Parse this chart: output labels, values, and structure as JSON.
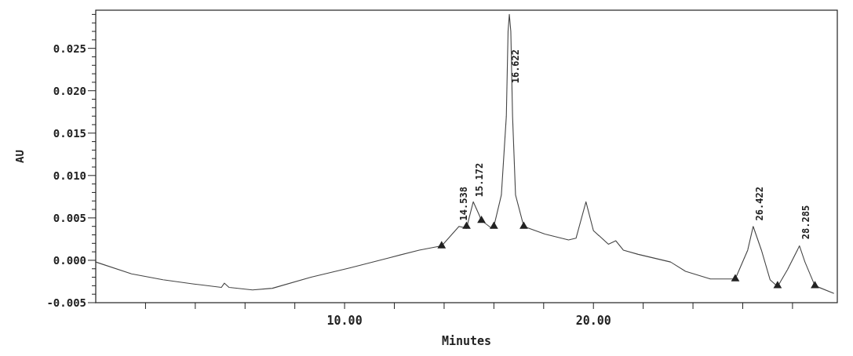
{
  "chart_data": {
    "type": "line",
    "xlabel": "Minutes",
    "ylabel": "AU",
    "xlim": [
      0,
      29.8
    ],
    "ylim": [
      -0.005,
      0.0295
    ],
    "xticks": [
      {
        "value": 2,
        "label": null
      },
      {
        "value": 4,
        "label": null
      },
      {
        "value": 6,
        "label": null
      },
      {
        "value": 8,
        "label": null
      },
      {
        "value": 10,
        "label": "10.00"
      },
      {
        "value": 12,
        "label": null
      },
      {
        "value": 14,
        "label": null
      },
      {
        "value": 16,
        "label": null
      },
      {
        "value": 18,
        "label": null
      },
      {
        "value": 20,
        "label": "20.00"
      },
      {
        "value": 22,
        "label": null
      },
      {
        "value": 24,
        "label": null
      },
      {
        "value": 26,
        "label": null
      },
      {
        "value": 28,
        "label": null
      }
    ],
    "yticks": [
      {
        "value": -0.005,
        "label": "-0.005"
      },
      {
        "value": -0.004,
        "label": null
      },
      {
        "value": -0.003,
        "label": null
      },
      {
        "value": -0.002,
        "label": null
      },
      {
        "value": -0.001,
        "label": null
      },
      {
        "value": 0,
        "label": "0.000"
      },
      {
        "value": 0.001,
        "label": null
      },
      {
        "value": 0.002,
        "label": null
      },
      {
        "value": 0.003,
        "label": null
      },
      {
        "value": 0.004,
        "label": null
      },
      {
        "value": 0.005,
        "label": "0.005"
      },
      {
        "value": 0.006,
        "label": null
      },
      {
        "value": 0.007,
        "label": null
      },
      {
        "value": 0.008,
        "label": null
      },
      {
        "value": 0.009,
        "label": null
      },
      {
        "value": 0.01,
        "label": "0.010"
      },
      {
        "value": 0.011,
        "label": null
      },
      {
        "value": 0.012,
        "label": null
      },
      {
        "value": 0.013,
        "label": null
      },
      {
        "value": 0.014,
        "label": null
      },
      {
        "value": 0.015,
        "label": "0.015"
      },
      {
        "value": 0.016,
        "label": null
      },
      {
        "value": 0.017,
        "label": null
      },
      {
        "value": 0.018,
        "label": null
      },
      {
        "value": 0.019,
        "label": null
      },
      {
        "value": 0.02,
        "label": "0.020"
      },
      {
        "value": 0.021,
        "label": null
      },
      {
        "value": 0.022,
        "label": null
      },
      {
        "value": 0.023,
        "label": null
      },
      {
        "value": 0.024,
        "label": null
      },
      {
        "value": 0.025,
        "label": "0.025"
      },
      {
        "value": 0.026,
        "label": null
      },
      {
        "value": 0.027,
        "label": null
      },
      {
        "value": 0.028,
        "label": null
      },
      {
        "value": 0.029,
        "label": null
      }
    ],
    "grid": false,
    "line_style": "solid",
    "series": [
      {
        "color": "#444444",
        "marker": "none",
        "x": [
          0,
          1.44,
          2.7,
          3.95,
          5.05,
          5.17,
          5.36,
          6.3,
          7.1,
          8.65,
          10.2,
          11.8,
          13.0,
          13.9,
          14.6,
          14.9,
          15.17,
          15.4,
          15.5,
          15.9,
          16.0,
          16.3,
          16.5,
          16.57,
          16.62,
          16.68,
          16.75,
          16.87,
          17.2,
          18.05,
          19.0,
          19.3,
          19.7,
          20.0,
          20.6,
          20.9,
          21.2,
          21.8,
          23.1,
          23.7,
          24.7,
          25.7,
          26.2,
          26.42,
          26.75,
          27.1,
          27.4,
          27.8,
          28.28,
          28.5,
          28.9,
          29.65
        ],
        "values": [
          -0.0002,
          -0.0016,
          -0.0023,
          -0.0028,
          -0.0032,
          -0.0027,
          -0.0032,
          -0.0035,
          -0.0033,
          -0.002,
          -0.0009,
          0.0003,
          0.0012,
          0.0017,
          0.004,
          0.0038,
          0.0069,
          0.0054,
          0.0047,
          0.0038,
          0.004,
          0.0077,
          0.017,
          0.027,
          0.029,
          0.027,
          0.017,
          0.0077,
          0.004,
          0.0031,
          0.0024,
          0.0026,
          0.0069,
          0.0035,
          0.0019,
          0.0023,
          0.0012,
          0.0007,
          -0.0002,
          -0.0013,
          -0.0022,
          -0.0022,
          0.0012,
          0.004,
          0.0012,
          -0.0023,
          -0.0031,
          -0.0011,
          0.0017,
          -0.0002,
          -0.003,
          -0.0039
        ]
      },
      {
        "type": "scatter",
        "color": "#222222",
        "marker": "triangle",
        "x": [
          13.9,
          14.9,
          15.5,
          16.0,
          17.2,
          25.7,
          27.4,
          28.9
        ],
        "values": [
          0.0017,
          0.004,
          0.0047,
          0.004,
          0.004,
          -0.0022,
          -0.003,
          -0.003
        ]
      }
    ],
    "annotations": [
      {
        "text": "14.538",
        "x": 14.54,
        "y": 0.0043
      },
      {
        "text": "15.172",
        "x": 15.17,
        "y": 0.0071
      },
      {
        "text": "16.622",
        "x": 16.62,
        "y": 0.0205
      },
      {
        "text": "26.422",
        "x": 26.42,
        "y": 0.0043
      },
      {
        "text": "28.285",
        "x": 28.28,
        "y": 0.0021
      }
    ]
  }
}
